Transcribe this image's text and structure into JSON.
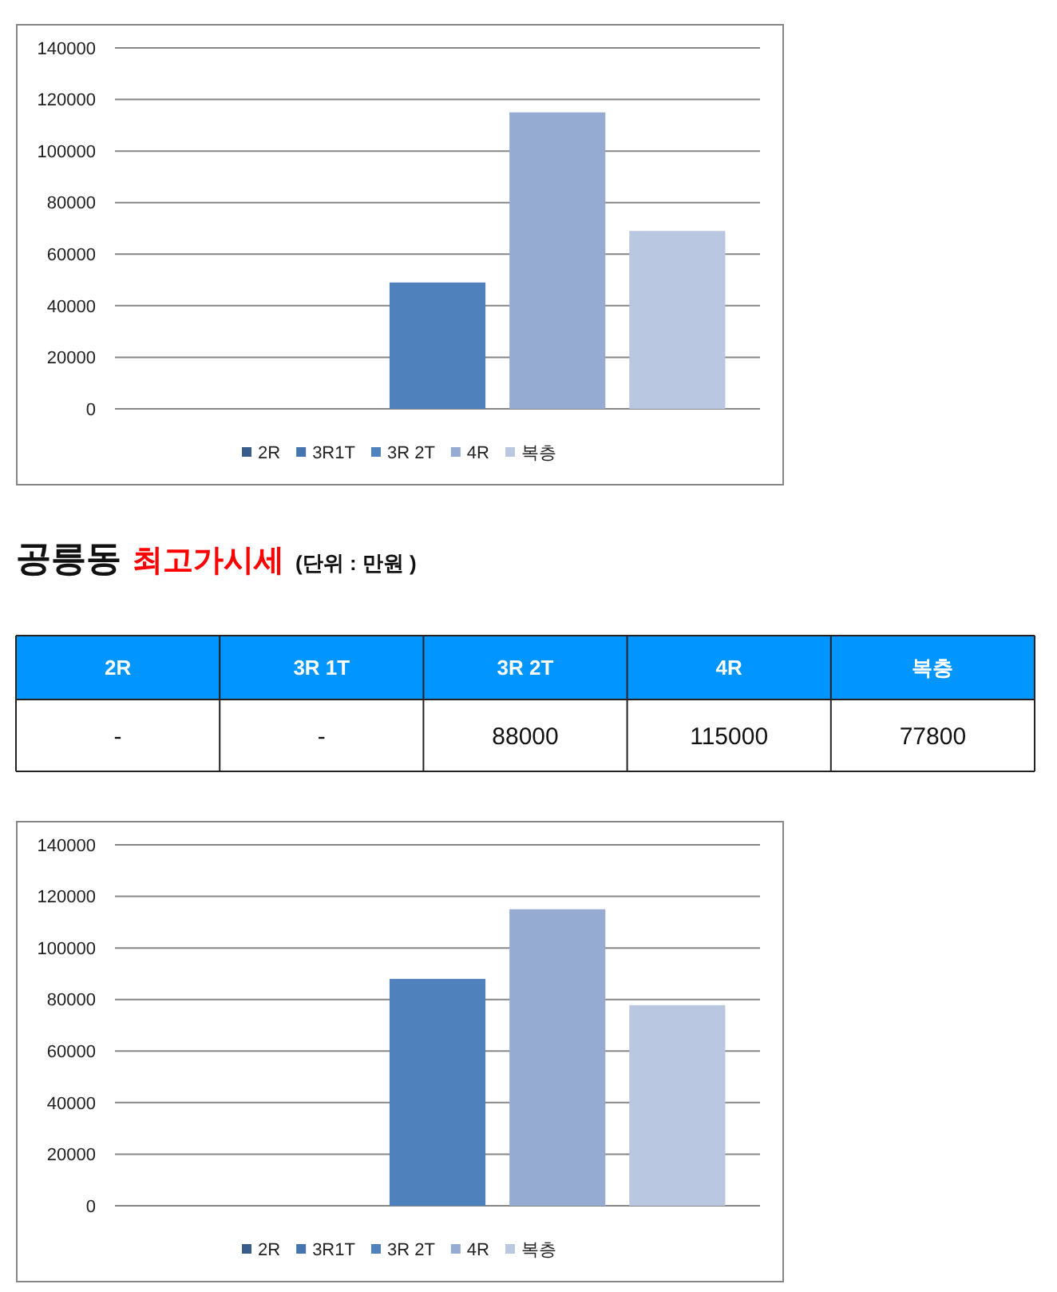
{
  "chart_data": [
    {
      "type": "bar",
      "categories": [
        null
      ],
      "series": [
        {
          "name": "2R",
          "color": "#385d8a",
          "values": [
            null
          ]
        },
        {
          "name": "3R1T",
          "color": "#4674b0",
          "values": [
            null
          ]
        },
        {
          "name": "3R 2T",
          "color": "#4f81bd",
          "values": [
            49000
          ]
        },
        {
          "name": "4R",
          "color": "#95abd2",
          "values": [
            115000
          ]
        },
        {
          "name": "복층",
          "color": "#b9c7e0",
          "values": [
            69000
          ]
        }
      ],
      "ylim": [
        0,
        140000
      ],
      "yticks": [
        0,
        20000,
        40000,
        60000,
        80000,
        100000,
        120000,
        140000
      ],
      "grid": "y",
      "legend": "bottom",
      "tick_labels": "y"
    },
    {
      "type": "other",
      "title": "공릉동 최고가시세",
      "subtitle": "(단위 : 만원 )",
      "color": "#0095ff",
      "categories": [
        "2R",
        "3R 1T",
        "3R 2T",
        "4R",
        "복층"
      ],
      "value_labels": [
        "-",
        "-",
        "88000",
        "115000",
        "77800"
      ]
    },
    {
      "type": "bar",
      "categories": [
        null
      ],
      "series": [
        {
          "name": "2R",
          "color": "#385d8a",
          "values": [
            null
          ]
        },
        {
          "name": "3R1T",
          "color": "#4674b0",
          "values": [
            null
          ]
        },
        {
          "name": "3R 2T",
          "color": "#4f81bd",
          "values": [
            88000
          ]
        },
        {
          "name": "4R",
          "color": "#95abd2",
          "values": [
            115000
          ]
        },
        {
          "name": "복층",
          "color": "#b9c7e0",
          "values": [
            77800
          ]
        }
      ],
      "ylim": [
        0,
        140000
      ],
      "yticks": [
        0,
        20000,
        40000,
        60000,
        80000,
        100000,
        120000,
        140000
      ],
      "grid": "y",
      "legend": "bottom",
      "tick_labels": "y"
    }
  ]
}
